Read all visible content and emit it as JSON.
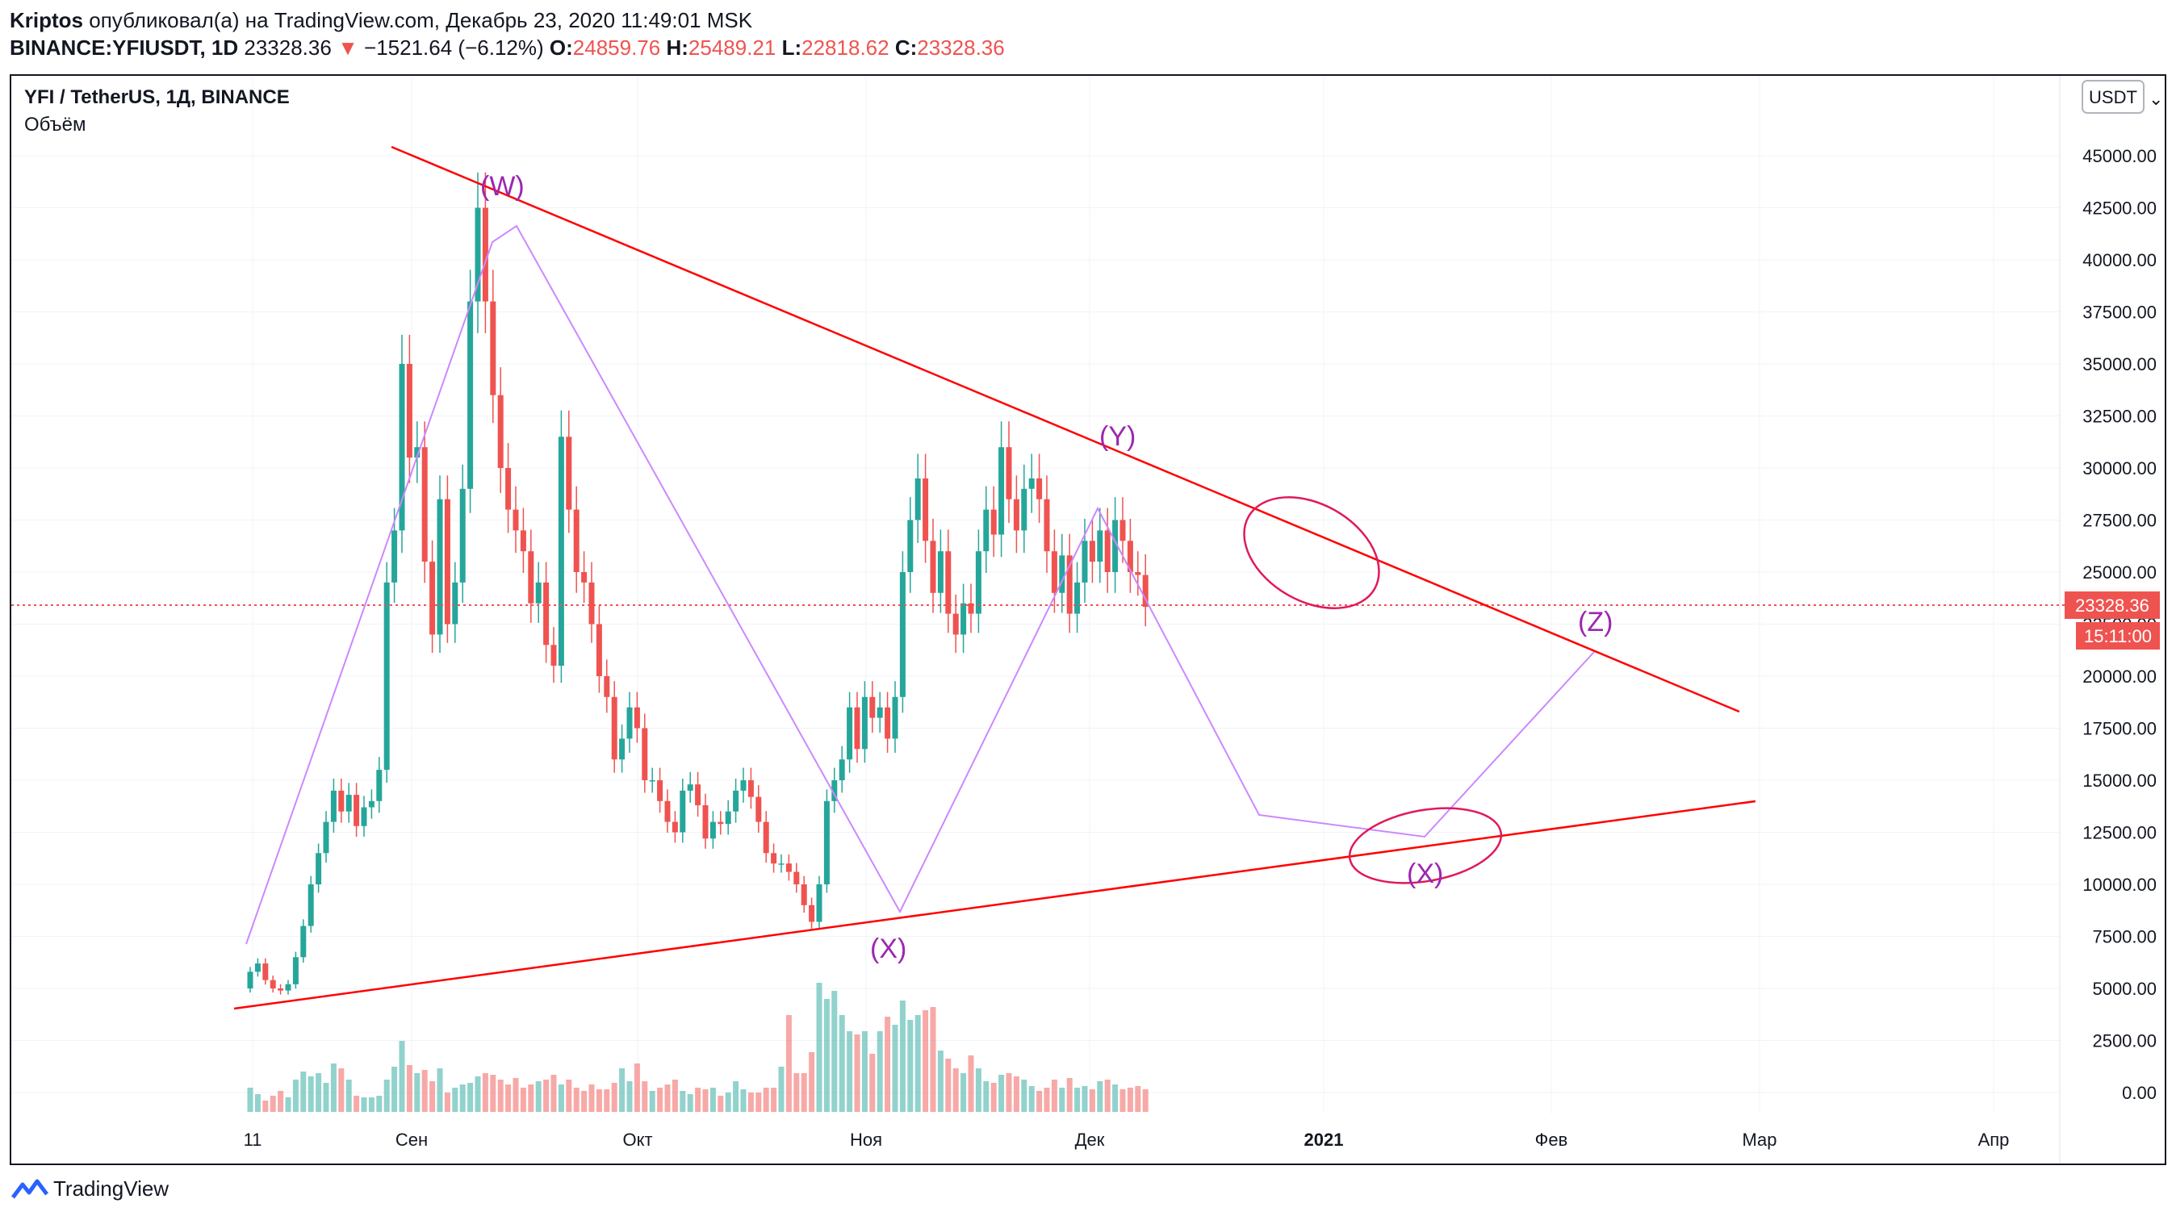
{
  "header": {
    "author": "Kriptos",
    "published_text": "опубликовал(а) на TradingView.com, Декабрь 23, 2020 11:49:01 MSK",
    "symbol": "BINANCE:YFIUSDT, 1D",
    "last": "23328.36",
    "change": "−1521.64 (−6.12%)",
    "o_label": "O:",
    "o": "24859.76",
    "h_label": "H:",
    "h": "25489.21",
    "l_label": "L:",
    "l": "22818.62",
    "c_label": "C:",
    "c": "23328.36"
  },
  "legend": {
    "title": "YFI / TetherUS, 1Д, BINANCE",
    "volume": "Объём"
  },
  "price_axis": {
    "currency": "USDT",
    "current_price": "23328.36",
    "countdown": "15:11:00"
  },
  "footer": {
    "brand": "TradingView"
  },
  "colors": {
    "up": "#26a69a",
    "down": "#ef5350",
    "trend": "#ff0000",
    "wave": "#cc88ff",
    "label": "#9c27b0"
  },
  "chart_data": {
    "type": "candlestick",
    "title": "YFI / TetherUS, 1Д, BINANCE",
    "xlabel": "",
    "ylabel": "",
    "ylim": [
      0,
      47500
    ],
    "yticks": [
      "0.00",
      "2500.00",
      "5000.00",
      "7500.00",
      "10000.00",
      "12500.00",
      "15000.00",
      "17500.00",
      "20000.00",
      "22500.00",
      "25000.00",
      "27500.00",
      "30000.00",
      "32500.00",
      "35000.00",
      "37500.00",
      "40000.00",
      "42500.00",
      "45000.00"
    ],
    "xticks": [
      "11",
      "Сен",
      "Окт",
      "Ноя",
      "Дек",
      "2021",
      "Фев",
      "Мар",
      "Апр"
    ],
    "x_start": "2020-08-11",
    "series_close": [
      5800,
      6200,
      5400,
      5000,
      4900,
      5200,
      6500,
      8000,
      10000,
      11500,
      13000,
      14500,
      13500,
      14300,
      12800,
      13700,
      14000,
      15500,
      24500,
      27000,
      35000,
      30500,
      31000,
      25500,
      22000,
      28500,
      22500,
      24500,
      29000,
      38000,
      42500,
      38000,
      33500,
      30000,
      28000,
      27000,
      26000,
      23500,
      24500,
      21500,
      20500,
      31500,
      28000,
      25000,
      24500,
      22500,
      20000,
      19000,
      16000,
      17000,
      18500,
      17500,
      15000,
      15000,
      14000,
      13000,
      12500,
      14500,
      14800,
      13800,
      12200,
      13000,
      12900,
      13500,
      14500,
      15000,
      14200,
      13000,
      11500,
      11000,
      11000,
      10600,
      10000,
      9000,
      8200,
      10000,
      14000,
      15000,
      16000,
      18500,
      16500,
      19000,
      18000,
      18500,
      17000,
      19000,
      25000,
      27500,
      29500,
      26500,
      24000,
      26000,
      23000,
      22000,
      23500,
      23000,
      26000,
      28000,
      26800,
      31000,
      28500,
      27000,
      29000,
      29500,
      28500,
      26000,
      24000,
      25800,
      23000,
      24500,
      26500,
      25500,
      27000,
      25000,
      27500,
      26500,
      25000,
      24860,
      23328
    ],
    "series_open": [
      5000,
      5800,
      6200,
      5400,
      5000,
      4900,
      5200,
      6500,
      8000,
      10000,
      11500,
      13000,
      14500,
      13500,
      14300,
      12800,
      13700,
      14000,
      15500,
      24500,
      27000,
      35000,
      30500,
      31000,
      25500,
      22000,
      28500,
      22500,
      24500,
      29000,
      38000,
      42500,
      38000,
      33500,
      30000,
      28000,
      27000,
      26000,
      23500,
      24500,
      21500,
      20500,
      31500,
      28000,
      25000,
      24500,
      22500,
      20000,
      19000,
      16000,
      17000,
      18500,
      17500,
      15000,
      15000,
      14000,
      13000,
      12500,
      14500,
      14800,
      13800,
      12200,
      13000,
      12900,
      13500,
      14500,
      15000,
      14200,
      13000,
      11500,
      11000,
      11000,
      10600,
      10000,
      9000,
      8200,
      10000,
      14000,
      15000,
      16000,
      18500,
      16500,
      19000,
      18000,
      18500,
      17000,
      19000,
      25000,
      27500,
      29500,
      26500,
      24000,
      26000,
      23000,
      22000,
      23500,
      23000,
      26000,
      28000,
      26800,
      31000,
      28500,
      27000,
      29000,
      29500,
      28500,
      26000,
      24000,
      25800,
      23000,
      24500,
      26500,
      25500,
      27000,
      25000,
      27500,
      26500,
      25000,
      24860
    ],
    "annotations": [
      "(W)",
      "(Y)",
      "(X)",
      "(X)",
      "(Z)"
    ]
  }
}
